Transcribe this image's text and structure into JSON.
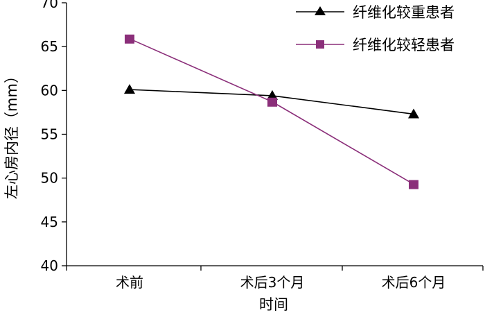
{
  "chart_data": {
    "type": "line",
    "categories": [
      "术前",
      "术后3个月",
      "术后6个月"
    ],
    "series": [
      {
        "name": "纤维化较重患者",
        "values": [
          60.1,
          59.4,
          57.3
        ],
        "color": "#000000",
        "marker": "triangle"
      },
      {
        "name": "纤维化较轻患者",
        "values": [
          65.9,
          58.7,
          49.3
        ],
        "color": "#8B2F7A",
        "marker": "square"
      }
    ],
    "title": "",
    "xlabel": "时间",
    "ylabel": "左心房内径（mm）",
    "ylim": [
      40,
      70
    ],
    "yticks": [
      40,
      45,
      50,
      55,
      60,
      65,
      70
    ],
    "grid": false,
    "legend_position": "top-right"
  }
}
